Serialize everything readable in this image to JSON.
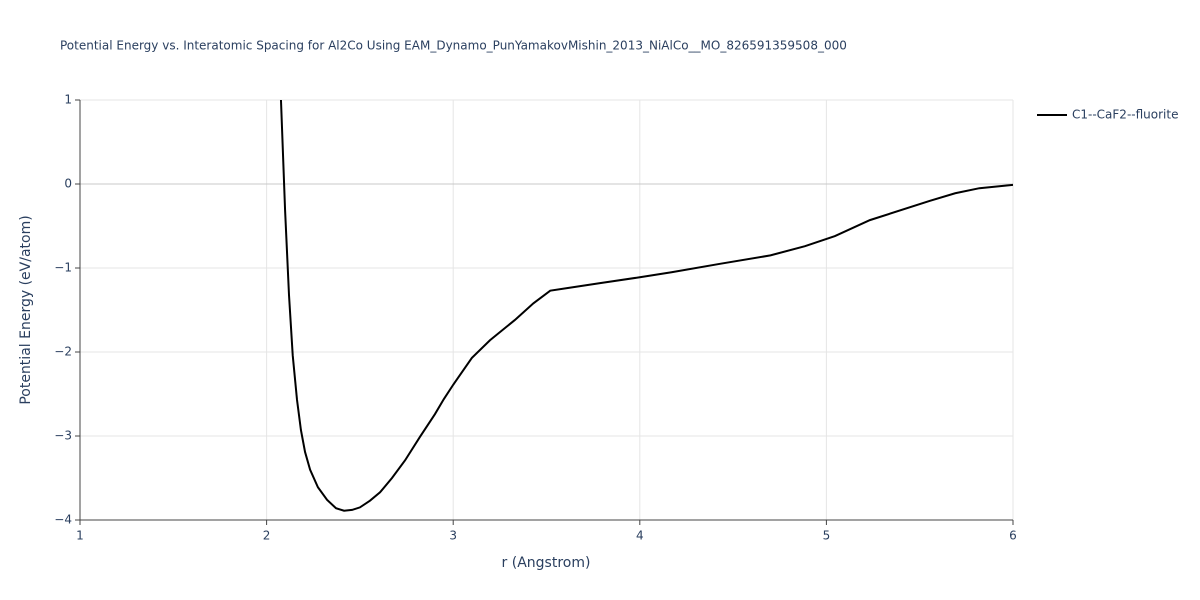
{
  "chart_data": {
    "type": "line",
    "title": "Potential Energy vs. Interatomic Spacing for Al2Co Using EAM_Dynamo_PunYamakovMishin_2013_NiAlCo__MO_826591359508_000",
    "x_label": "r (Angstrom)",
    "y_label": "Potential Energy (eV/atom)",
    "xlim": [
      1,
      6
    ],
    "ylim": [
      -4,
      1
    ],
    "xticks": [
      1,
      2,
      3,
      4,
      5,
      6
    ],
    "yticks": [
      {
        "value": -4,
        "label": "−4"
      },
      {
        "value": -3,
        "label": "−3"
      },
      {
        "value": -2,
        "label": "−2"
      },
      {
        "value": -1,
        "label": "−1"
      },
      0,
      1
    ],
    "grid": true,
    "legend": "right",
    "series": [
      {
        "name": "C1--CaF2--fluorite",
        "color": "#000000",
        "x": [
          2.077,
          2.099,
          2.12,
          2.14,
          2.163,
          2.184,
          2.206,
          2.233,
          2.275,
          2.324,
          2.372,
          2.415,
          2.458,
          2.5,
          2.554,
          2.608,
          2.672,
          2.742,
          2.822,
          2.902,
          2.95,
          3.0,
          3.1,
          3.197,
          3.33,
          3.43,
          3.52,
          3.61,
          3.787,
          4.0,
          4.17,
          4.43,
          4.7,
          4.885,
          5.046,
          5.233,
          5.555,
          5.69,
          5.82,
          6.0
        ],
        "values": [
          1.0,
          -0.31,
          -1.32,
          -2.04,
          -2.57,
          -2.93,
          -3.19,
          -3.4,
          -3.61,
          -3.76,
          -3.86,
          -3.89,
          -3.88,
          -3.85,
          -3.77,
          -3.67,
          -3.5,
          -3.29,
          -3.01,
          -2.74,
          -2.56,
          -2.39,
          -2.07,
          -1.86,
          -1.62,
          -1.42,
          -1.27,
          -1.24,
          -1.18,
          -1.11,
          -1.05,
          -0.95,
          -0.85,
          -0.74,
          -0.62,
          -0.43,
          -0.2,
          -0.11,
          -0.05,
          -0.01
        ]
      }
    ]
  }
}
